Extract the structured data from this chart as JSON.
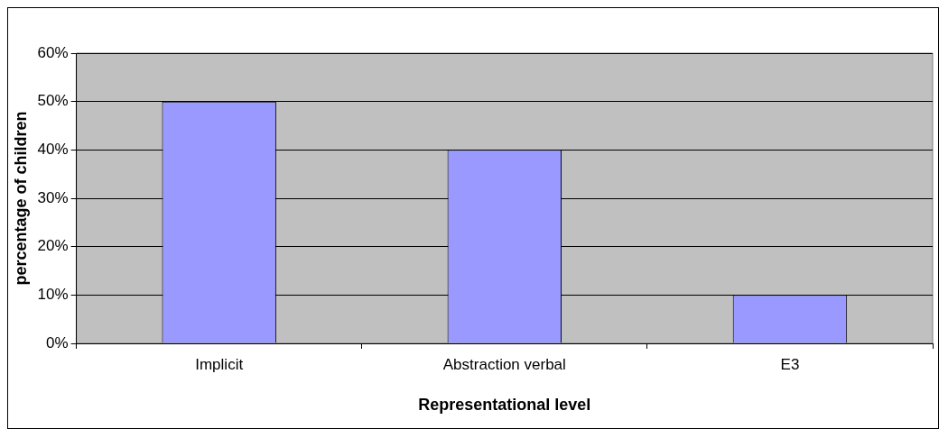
{
  "chart_data": {
    "type": "bar",
    "xlabel": "Representational level",
    "ylabel": "percentage of children",
    "categories": [
      "Implicit",
      "Abstraction verbal",
      "E3"
    ],
    "series": [
      {
        "color": "#9999ff",
        "values": [
          50,
          40,
          10
        ]
      }
    ],
    "ylim": [
      0,
      60
    ],
    "yticks": [
      {
        "value": 0,
        "label": "0%"
      },
      {
        "value": 10,
        "label": "10%"
      },
      {
        "value": 20,
        "label": "20%"
      },
      {
        "value": 30,
        "label": "30%"
      },
      {
        "value": 40,
        "label": "40%"
      },
      {
        "value": 50,
        "label": "50%"
      },
      {
        "value": 60,
        "label": "60%"
      }
    ],
    "grid": "y",
    "legend": false
  }
}
